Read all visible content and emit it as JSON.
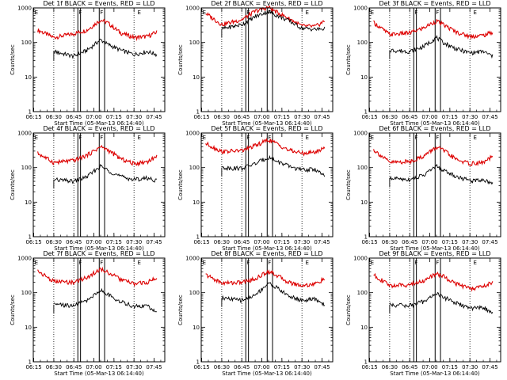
{
  "figure": {
    "background": "#ffffff"
  },
  "colors": {
    "events": "#000000",
    "lld": "#dd0000",
    "axes": "#000000"
  },
  "chart_data": [
    {
      "type": "line",
      "title": "Det 1f BLACK = Events, RED = LLD",
      "xlabel": "Start Time (05-Mar-13 06:14:40)",
      "ylabel": "Counts/sec",
      "yscale": "log",
      "ylim": [
        1,
        1000
      ],
      "ytick_labels": [
        "1",
        "10",
        "100",
        "1000"
      ],
      "xtick_labels": [
        "06:15",
        "06:30",
        "06:45",
        "07:00",
        "07:15",
        "07:30",
        "07:45"
      ],
      "xlim": [
        "06:14:40",
        "07:53:00"
      ],
      "markers": {
        "dotted": [
          "06:30",
          "06:45",
          "07:30"
        ],
        "solid": [
          "06:48",
          "06:50",
          "07:04",
          "07:08"
        ]
      },
      "flags": [
        {
          "label": "F",
          "time": "06:48"
        },
        {
          "label": "F",
          "time": "07:04"
        },
        {
          "label": "E",
          "time": "06:15"
        },
        {
          "label": "E",
          "time": "07:32"
        }
      ],
      "x": [
        "06:18",
        "06:30",
        "06:45",
        "06:55",
        "07:05",
        "07:10",
        "07:20",
        "07:30",
        "07:40",
        "07:47"
      ],
      "series": [
        {
          "name": "LLD",
          "color": "#dd0000",
          "values": [
            230,
            140,
            180,
            230,
            450,
            380,
            190,
            140,
            150,
            200
          ]
        },
        {
          "name": "Events",
          "color": "#000000",
          "values": [
            null,
            55,
            40,
            60,
            120,
            90,
            60,
            45,
            55,
            45
          ]
        }
      ]
    },
    {
      "type": "line",
      "title": "Det 2f BLACK = Events, RED = LLD",
      "xlabel": "Start Time (05-Mar-13 06:14:40)",
      "ylabel": "Counts/sec",
      "yscale": "log",
      "ylim": [
        1,
        1000
      ],
      "ytick_labels": [
        "1",
        "10",
        "100",
        "1000"
      ],
      "xtick_labels": [
        "06:15",
        "06:30",
        "06:45",
        "07:00",
        "07:15",
        "07:30",
        "07:45"
      ],
      "xlim": [
        "06:14:40",
        "07:53:00"
      ],
      "markers": {
        "dotted": [
          "06:30",
          "06:45",
          "07:30"
        ],
        "solid": [
          "06:48",
          "06:50",
          "07:04",
          "07:08"
        ]
      },
      "flags": [
        {
          "label": "F",
          "time": "06:48"
        },
        {
          "label": "F",
          "time": "07:04"
        },
        {
          "label": "E",
          "time": "06:15"
        },
        {
          "label": "E",
          "time": "07:32"
        }
      ],
      "x": [
        "06:18",
        "06:30",
        "06:45",
        "06:55",
        "07:05",
        "07:10",
        "07:20",
        "07:30",
        "07:40",
        "07:47"
      ],
      "series": [
        {
          "name": "LLD",
          "color": "#dd0000",
          "values": [
            700,
            330,
            460,
            800,
            1050,
            800,
            500,
            300,
            290,
            420
          ]
        },
        {
          "name": "Events",
          "color": "#000000",
          "values": [
            null,
            250,
            330,
            560,
            800,
            640,
            430,
            260,
            240,
            250
          ]
        }
      ]
    },
    {
      "type": "line",
      "title": "Det 3f BLACK = Events, RED = LLD",
      "xlabel": "Start Time (05-Mar-13 06:14:40)",
      "ylabel": "Counts/sec",
      "yscale": "log",
      "ylim": [
        1,
        1000
      ],
      "ytick_labels": [
        "1",
        "10",
        "100",
        "1000"
      ],
      "xtick_labels": [
        "06:15",
        "06:30",
        "06:45",
        "07:00",
        "07:15",
        "07:30",
        "07:45"
      ],
      "xlim": [
        "06:14:40",
        "07:53:00"
      ],
      "markers": {
        "dotted": [
          "06:30",
          "06:45",
          "07:30"
        ],
        "solid": [
          "06:48",
          "06:50",
          "07:04",
          "07:08"
        ]
      },
      "flags": [
        {
          "label": "F",
          "time": "06:48"
        },
        {
          "label": "F",
          "time": "07:04"
        },
        {
          "label": "E",
          "time": "06:15"
        },
        {
          "label": "E",
          "time": "07:32"
        }
      ],
      "x": [
        "06:18",
        "06:30",
        "06:45",
        "06:55",
        "07:05",
        "07:10",
        "07:20",
        "07:30",
        "07:40",
        "07:47"
      ],
      "series": [
        {
          "name": "LLD",
          "color": "#dd0000",
          "values": [
            380,
            170,
            190,
            260,
            420,
            330,
            200,
            150,
            160,
            200
          ]
        },
        {
          "name": "Events",
          "color": "#000000",
          "values": [
            null,
            60,
            55,
            75,
            140,
            100,
            65,
            50,
            55,
            40
          ]
        }
      ]
    },
    {
      "type": "line",
      "title": "Det 4f BLACK = Events, RED = LLD",
      "xlabel": "Start Time (05-Mar-13 06:14:40)",
      "ylabel": "Counts/sec",
      "yscale": "log",
      "ylim": [
        1,
        1000
      ],
      "ytick_labels": [
        "1",
        "10",
        "100",
        "1000"
      ],
      "xtick_labels": [
        "06:15",
        "06:30",
        "06:45",
        "07:00",
        "07:15",
        "07:30",
        "07:45"
      ],
      "xlim": [
        "06:14:40",
        "07:53:00"
      ],
      "markers": {
        "dotted": [
          "06:30",
          "06:45",
          "07:30"
        ],
        "solid": [
          "06:48",
          "06:50",
          "07:04",
          "07:08"
        ]
      },
      "flags": [
        {
          "label": "F",
          "time": "06:48"
        },
        {
          "label": "F",
          "time": "07:04"
        },
        {
          "label": "E",
          "time": "06:15"
        },
        {
          "label": "E",
          "time": "07:32"
        }
      ],
      "x": [
        "06:18",
        "06:30",
        "06:45",
        "06:55",
        "07:05",
        "07:10",
        "07:20",
        "07:30",
        "07:40",
        "07:47"
      ],
      "series": [
        {
          "name": "LLD",
          "color": "#dd0000",
          "values": [
            260,
            140,
            160,
            230,
            400,
            330,
            180,
            130,
            150,
            210
          ]
        },
        {
          "name": "Events",
          "color": "#000000",
          "values": [
            null,
            45,
            40,
            55,
            110,
            85,
            55,
            45,
            50,
            42
          ]
        }
      ]
    },
    {
      "type": "line",
      "title": "Det 5f BLACK = Events, RED = LLD",
      "xlabel": "Start Time (05-Mar-13 06:14:40)",
      "ylabel": "Counts/sec",
      "yscale": "log",
      "ylim": [
        1,
        1000
      ],
      "ytick_labels": [
        "1",
        "10",
        "100",
        "1000"
      ],
      "xtick_labels": [
        "06:15",
        "06:30",
        "06:45",
        "07:00",
        "07:15",
        "07:30",
        "07:45"
      ],
      "xlim": [
        "06:14:40",
        "07:53:00"
      ],
      "markers": {
        "dotted": [
          "06:30",
          "06:45",
          "07:30"
        ],
        "solid": [
          "06:48",
          "06:50",
          "07:04",
          "07:08"
        ]
      },
      "flags": [
        {
          "label": "F",
          "time": "06:48"
        },
        {
          "label": "F",
          "time": "07:04"
        },
        {
          "label": "E",
          "time": "06:15"
        },
        {
          "label": "E",
          "time": "07:32"
        }
      ],
      "x": [
        "06:18",
        "06:30",
        "06:45",
        "06:55",
        "07:05",
        "07:10",
        "07:20",
        "07:30",
        "07:40",
        "07:47"
      ],
      "series": [
        {
          "name": "LLD",
          "color": "#dd0000",
          "values": [
            500,
            290,
            310,
            430,
            640,
            520,
            320,
            260,
            280,
            380
          ]
        },
        {
          "name": "Events",
          "color": "#000000",
          "values": [
            null,
            100,
            95,
            130,
            200,
            160,
            110,
            85,
            90,
            55
          ]
        }
      ]
    },
    {
      "type": "line",
      "title": "Det 6f BLACK = Events, RED = LLD",
      "xlabel": "Start Time (05-Mar-13 06:14:40)",
      "ylabel": "Counts/sec",
      "yscale": "log",
      "ylim": [
        1,
        1000
      ],
      "ytick_labels": [
        "1",
        "10",
        "100",
        "1000"
      ],
      "xtick_labels": [
        "06:15",
        "06:30",
        "06:45",
        "07:00",
        "07:15",
        "07:30",
        "07:45"
      ],
      "xlim": [
        "06:14:40",
        "07:53:00"
      ],
      "markers": {
        "dotted": [
          "06:30",
          "06:45",
          "07:30"
        ],
        "solid": [
          "06:48",
          "06:50",
          "07:04",
          "07:08"
        ]
      },
      "flags": [
        {
          "label": "F",
          "time": "06:48"
        },
        {
          "label": "F",
          "time": "07:04"
        },
        {
          "label": "E",
          "time": "06:15"
        },
        {
          "label": "E",
          "time": "07:32"
        }
      ],
      "x": [
        "06:18",
        "06:30",
        "06:45",
        "06:55",
        "07:05",
        "07:10",
        "07:20",
        "07:30",
        "07:40",
        "07:47"
      ],
      "series": [
        {
          "name": "LLD",
          "color": "#dd0000",
          "values": [
            330,
            140,
            150,
            210,
            390,
            320,
            170,
            130,
            140,
            210
          ]
        },
        {
          "name": "Events",
          "color": "#000000",
          "values": [
            null,
            50,
            45,
            60,
            110,
            85,
            55,
            42,
            45,
            35
          ]
        }
      ]
    },
    {
      "type": "line",
      "title": "Det 7f BLACK = Events, RED = LLD",
      "xlabel": "Start Time (05-Mar-13 06:14:40)",
      "ylabel": "Counts/sec",
      "yscale": "log",
      "ylim": [
        1,
        1000
      ],
      "ytick_labels": [
        "1",
        "10",
        "100",
        "1000"
      ],
      "xtick_labels": [
        "06:15",
        "06:30",
        "06:45",
        "07:00",
        "07:15",
        "07:30",
        "07:45"
      ],
      "xlim": [
        "06:14:40",
        "07:53:00"
      ],
      "markers": {
        "dotted": [
          "06:30",
          "06:45",
          "07:30"
        ],
        "solid": [
          "06:48",
          "06:50",
          "07:04",
          "07:08"
        ]
      },
      "flags": [
        {
          "label": "F",
          "time": "06:48"
        },
        {
          "label": "F",
          "time": "07:04"
        },
        {
          "label": "E",
          "time": "06:15"
        },
        {
          "label": "E",
          "time": "07:32"
        }
      ],
      "x": [
        "06:18",
        "06:30",
        "06:45",
        "06:55",
        "07:05",
        "07:10",
        "07:20",
        "07:30",
        "07:40",
        "07:47"
      ],
      "series": [
        {
          "name": "LLD",
          "color": "#dd0000",
          "values": [
            430,
            210,
            200,
            280,
            480,
            400,
            240,
            180,
            200,
            270
          ]
        },
        {
          "name": "Events",
          "color": "#000000",
          "values": [
            null,
            45,
            42,
            60,
            120,
            90,
            55,
            40,
            42,
            25
          ]
        }
      ]
    },
    {
      "type": "line",
      "title": "Det 8f BLACK = Events, RED = LLD",
      "xlabel": "Start Time (05-Mar-13 06:14:40)",
      "ylabel": "Counts/sec",
      "yscale": "log",
      "ylim": [
        1,
        1000
      ],
      "ytick_labels": [
        "1",
        "10",
        "100",
        "1000"
      ],
      "xtick_labels": [
        "06:15",
        "06:30",
        "06:45",
        "07:00",
        "07:15",
        "07:30",
        "07:45"
      ],
      "xlim": [
        "06:14:40",
        "07:53:00"
      ],
      "markers": {
        "dotted": [
          "06:30",
          "06:45",
          "07:30"
        ],
        "solid": [
          "06:48",
          "06:50",
          "07:04",
          "07:08"
        ]
      },
      "flags": [
        {
          "label": "F",
          "time": "06:48"
        },
        {
          "label": "F",
          "time": "07:04"
        },
        {
          "label": "E",
          "time": "06:15"
        },
        {
          "label": "E",
          "time": "07:32"
        }
      ],
      "x": [
        "06:18",
        "06:30",
        "06:45",
        "06:55",
        "07:05",
        "07:10",
        "07:20",
        "07:30",
        "07:40",
        "07:47"
      ],
      "series": [
        {
          "name": "LLD",
          "color": "#dd0000",
          "values": [
            330,
            190,
            200,
            250,
            420,
            340,
            200,
            160,
            180,
            250
          ]
        },
        {
          "name": "Events",
          "color": "#000000",
          "values": [
            null,
            70,
            60,
            85,
            190,
            150,
            80,
            60,
            65,
            45
          ]
        }
      ]
    },
    {
      "type": "line",
      "title": "Det 9f BLACK = Events, RED = LLD",
      "xlabel": "Start Time (05-Mar-13 06:14:40)",
      "ylabel": "Counts/sec",
      "yscale": "log",
      "ylim": [
        1,
        1000
      ],
      "ytick_labels": [
        "1",
        "10",
        "100",
        "1000"
      ],
      "xtick_labels": [
        "06:15",
        "06:30",
        "06:45",
        "07:00",
        "07:15",
        "07:30",
        "07:45"
      ],
      "xlim": [
        "06:14:40",
        "07:53:00"
      ],
      "markers": {
        "dotted": [
          "06:30",
          "06:45",
          "07:30"
        ],
        "solid": [
          "06:48",
          "06:50",
          "07:04",
          "07:08"
        ]
      },
      "flags": [
        {
          "label": "F",
          "time": "06:48"
        },
        {
          "label": "F",
          "time": "07:04"
        },
        {
          "label": "E",
          "time": "06:15"
        },
        {
          "label": "E",
          "time": "07:32"
        }
      ],
      "x": [
        "06:18",
        "06:30",
        "06:45",
        "06:55",
        "07:05",
        "07:10",
        "07:20",
        "07:30",
        "07:40",
        "07:47"
      ],
      "series": [
        {
          "name": "LLD",
          "color": "#dd0000",
          "values": [
            330,
            160,
            170,
            220,
            350,
            300,
            180,
            130,
            150,
            200
          ]
        },
        {
          "name": "Events",
          "color": "#000000",
          "values": [
            null,
            45,
            42,
            55,
            95,
            75,
            50,
            35,
            38,
            25
          ]
        }
      ]
    }
  ]
}
